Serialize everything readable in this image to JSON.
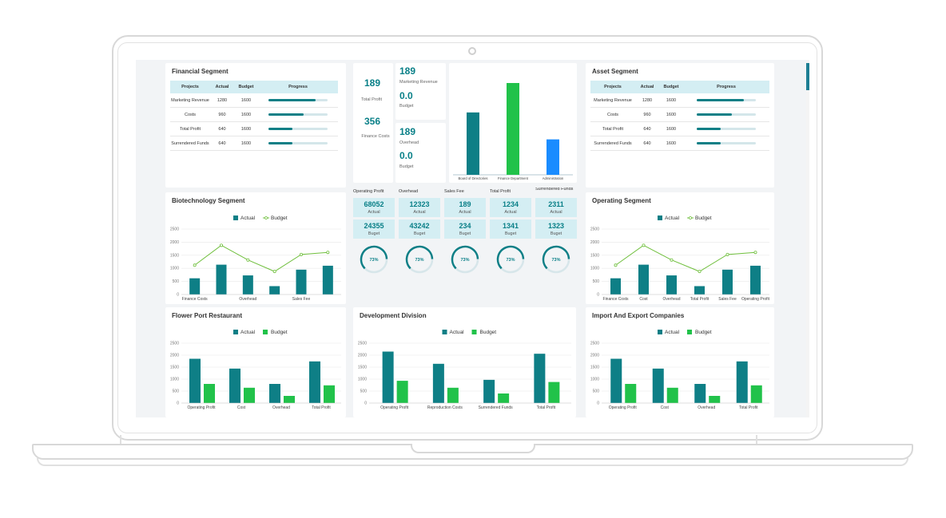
{
  "financial_segment": {
    "title": "Financial Segment",
    "headers": [
      "Projects",
      "Actual",
      "Budget",
      "Progress"
    ],
    "rows": [
      {
        "project": "Marketing Revenue",
        "actual": "1280",
        "budget": "1600",
        "progress": 0.8
      },
      {
        "project": "Costs",
        "actual": "960",
        "budget": "1600",
        "progress": 0.6
      },
      {
        "project": "Total Profit",
        "actual": "640",
        "budget": "1600",
        "progress": 0.4
      },
      {
        "project": "Surrendered Funds",
        "actual": "640",
        "budget": "1600",
        "progress": 0.4
      }
    ]
  },
  "kpi_cards": {
    "total_profit_value": "189",
    "total_profit_label": "Total Profit",
    "finance_costs_value": "356",
    "finance_costs_label": "Finance Costs",
    "marketing_revenue_value": "189",
    "marketing_revenue_label": "Marketing Revenue",
    "marketing_budget_value": "0.0",
    "marketing_budget_label": "Budget",
    "overhead_value": "189",
    "overhead_label": "Overhead",
    "overhead_budget_value": "0.0",
    "overhead_budget_label": "Budget"
  },
  "asset_segment": {
    "title": "Asset Segment",
    "headers": [
      "Projects",
      "Actual",
      "Budget",
      "Progress"
    ],
    "rows": [
      {
        "project": "Marketing Revenue",
        "actual": "1280",
        "budget": "1600",
        "progress": 0.8
      },
      {
        "project": "Costs",
        "actual": "960",
        "budget": "1600",
        "progress": 0.6
      },
      {
        "project": "Total Profit",
        "actual": "640",
        "budget": "1600",
        "progress": 0.4
      },
      {
        "project": "Surrendered Funds",
        "actual": "640",
        "budget": "1600",
        "progress": 0.4
      }
    ]
  },
  "center_stats": {
    "columns": [
      {
        "header": "Operating Profit",
        "actual": "68052",
        "actual_label": "Actual",
        "budget": "24355",
        "budget_label": "Buget",
        "gauge_percent": 73,
        "gauge_label": "73%"
      },
      {
        "header": "Overhead",
        "actual": "12323",
        "actual_label": "Actual",
        "budget": "43242",
        "budget_label": "Buget",
        "gauge_percent": 73,
        "gauge_label": "73%"
      },
      {
        "header": "Sales Fee",
        "actual": "189",
        "actual_label": "Actual",
        "budget": "234",
        "budget_label": "Buget",
        "gauge_percent": 73,
        "gauge_label": "73%"
      },
      {
        "header": "Total Profit",
        "actual": "1234",
        "actual_label": "Actual",
        "budget": "1341",
        "budget_label": "Buget",
        "gauge_percent": 73,
        "gauge_label": "73%"
      },
      {
        "header": "Surrendered Funds",
        "actual": "2311",
        "actual_label": "Actual",
        "budget": "1323",
        "budget_label": "Buget",
        "gauge_percent": 73,
        "gauge_label": "73%"
      }
    ]
  },
  "legend": {
    "actual": "Actual",
    "budget": "Budget"
  },
  "colors": {
    "teal": "#0e7f86",
    "green": "#21c24a",
    "blue": "#1a8cff",
    "line": "#6fbf3c"
  },
  "chart_data": [
    {
      "id": "department",
      "type": "bar",
      "categories": [
        "Board of Directories",
        "Finance Department",
        "Administration"
      ],
      "values": [
        1250,
        1840,
        710
      ],
      "ylim": [
        0,
        2000
      ],
      "colors": [
        "#0e7f86",
        "#21c24a",
        "#1a8cff"
      ],
      "title": ""
    },
    {
      "id": "biotech",
      "type": "bar",
      "title": "Biotechnology Segment",
      "categories": [
        "Finance Costs",
        "",
        "Overhead",
        "",
        "Sales Fee",
        ""
      ],
      "yticks": [
        0,
        500,
        1000,
        1500,
        2000,
        2500
      ],
      "ylim": [
        0,
        2500
      ],
      "series": [
        {
          "name": "Actual",
          "type": "bar",
          "values": [
            620,
            1140,
            730,
            320,
            950,
            1100
          ]
        },
        {
          "name": "Budget",
          "type": "line",
          "values": [
            1120,
            1880,
            1320,
            880,
            1530,
            1610
          ]
        }
      ]
    },
    {
      "id": "operating",
      "type": "bar",
      "title": "Operating Segment",
      "categories": [
        "Finance Costs",
        "Cost",
        "Overhead",
        "Total Profit",
        "Sales Fee",
        "Operating Profit"
      ],
      "yticks": [
        0,
        500,
        1000,
        1500,
        2000,
        2500
      ],
      "ylim": [
        0,
        2500
      ],
      "series": [
        {
          "name": "Actual",
          "type": "bar",
          "values": [
            620,
            1140,
            730,
            320,
            950,
            1100
          ]
        },
        {
          "name": "Budget",
          "type": "line",
          "values": [
            1120,
            1880,
            1320,
            880,
            1530,
            1610
          ]
        }
      ]
    },
    {
      "id": "flower",
      "type": "bar",
      "title": "Flower Port Restaurant",
      "categories": [
        "Operating Profit",
        "Cost",
        "Overhead",
        "Total Profit"
      ],
      "yticks": [
        0,
        500,
        1000,
        1500,
        2000,
        2500
      ],
      "ylim": [
        0,
        2500
      ],
      "series": [
        {
          "name": "Actual",
          "values": [
            1850,
            1440,
            800,
            1740
          ]
        },
        {
          "name": "Budget",
          "values": [
            800,
            640,
            300,
            740
          ]
        }
      ]
    },
    {
      "id": "development",
      "type": "bar",
      "title": "Development Division",
      "categories": [
        "Operating Profit",
        "Reproduction Costs",
        "Surrendered Funds",
        "Total Profit"
      ],
      "yticks": [
        0,
        500,
        1000,
        1500,
        2000,
        2500
      ],
      "ylim": [
        0,
        2500
      ],
      "series": [
        {
          "name": "Actual",
          "values": [
            2150,
            1640,
            970,
            2060
          ]
        },
        {
          "name": "Budget",
          "values": [
            930,
            640,
            400,
            880
          ]
        }
      ]
    },
    {
      "id": "import",
      "type": "bar",
      "title": "Import And Export Companies",
      "categories": [
        "Operating Profit",
        "Cost",
        "Overhead",
        "Total Profit"
      ],
      "yticks": [
        0,
        500,
        1000,
        1500,
        2000,
        2500
      ],
      "ylim": [
        0,
        2500
      ],
      "series": [
        {
          "name": "Actual",
          "values": [
            1850,
            1440,
            800,
            1740
          ]
        },
        {
          "name": "Budget",
          "values": [
            800,
            640,
            300,
            740
          ]
        }
      ]
    }
  ]
}
